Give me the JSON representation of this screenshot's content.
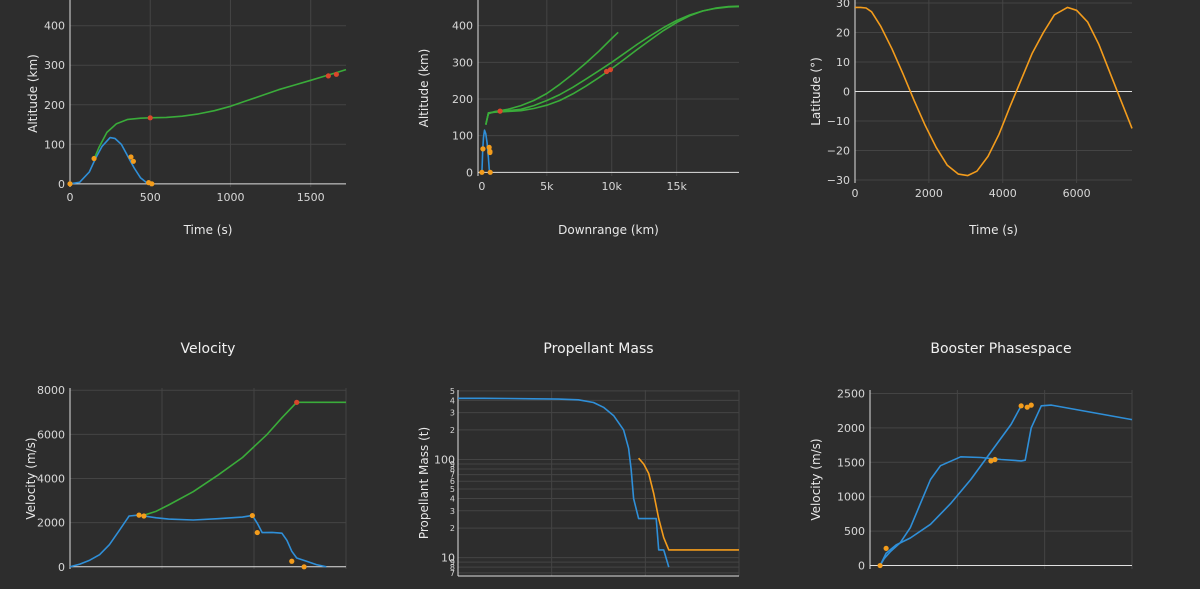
{
  "colors": {
    "background": "#2d2d2d",
    "grid": "#444444",
    "zeroline": "#e0e0e0",
    "blue": "#2f8fd8",
    "green": "#3aac3a",
    "orange": "#f39c1c",
    "redmarker": "#d9472b"
  },
  "chart_data": [
    {
      "id": "altitude-time",
      "type": "line",
      "title": "",
      "xlabel": "Time (s)",
      "ylabel": "Altitude (km)",
      "xlim": [
        0,
        1720
      ],
      "ylim": [
        -8,
        465
      ],
      "xticks": [
        0,
        500,
        1000,
        1500
      ],
      "xtick_labels": [
        "0",
        "500",
        "1000",
        "1500"
      ],
      "yticks": [
        0,
        100,
        200,
        300,
        400
      ],
      "ytick_labels": [
        "0",
        "100",
        "200",
        "300",
        "400"
      ],
      "series": [
        {
          "color": "blue",
          "x": [
            0,
            60,
            120,
            160,
            200,
            250,
            280,
            320,
            360,
            400,
            440,
            480,
            520
          ],
          "y": [
            0,
            4,
            30,
            65,
            95,
            117,
            115,
            100,
            70,
            40,
            15,
            2,
            0
          ]
        },
        {
          "color": "green",
          "x": [
            150,
            180,
            230,
            290,
            360,
            440,
            500,
            600,
            700,
            800,
            900,
            1000,
            1100,
            1200,
            1300,
            1400,
            1500,
            1600,
            1650,
            1720
          ],
          "y": [
            63,
            92,
            130,
            152,
            163,
            166,
            167,
            168,
            171,
            177,
            185,
            196,
            210,
            224,
            238,
            250,
            262,
            274,
            280,
            289
          ]
        }
      ],
      "markers": [
        {
          "color": "orange",
          "x": [
            0,
            150,
            380,
            395,
            490,
            510
          ],
          "y": [
            0,
            64,
            68,
            57,
            3,
            0
          ]
        },
        {
          "color": "redmarker",
          "x": [
            500,
            1610,
            1660
          ],
          "y": [
            167,
            273,
            277
          ]
        }
      ]
    },
    {
      "id": "altitude-downrange",
      "type": "line",
      "title": "",
      "xlabel": "Downrange (km)",
      "ylabel": "Altitude (km)",
      "xlim": [
        -300,
        19800
      ],
      "ylim": [
        -10,
        470
      ],
      "xticks": [
        0,
        5000,
        10000,
        15000
      ],
      "xtick_labels": [
        "0",
        "5k",
        "10k",
        "15k"
      ],
      "yticks": [
        0,
        100,
        200,
        300,
        400
      ],
      "ytick_labels": [
        "0",
        "100",
        "200",
        "300",
        "400"
      ],
      "series": [
        {
          "color": "blue",
          "x": [
            0,
            20,
            60,
            120,
            200,
            300,
            400,
            500,
            560,
            600
          ],
          "y": [
            0,
            20,
            60,
            95,
            115,
            105,
            80,
            40,
            10,
            0
          ]
        },
        {
          "color": "green",
          "x": [
            300,
            500,
            1000,
            2000,
            3000,
            4000,
            5000,
            6000,
            7000,
            8000,
            9000,
            10000,
            10500
          ],
          "y": [
            130,
            160,
            166,
            172,
            182,
            196,
            215,
            240,
            268,
            298,
            330,
            365,
            382
          ]
        },
        {
          "color": "green",
          "x": [
            300,
            500,
            1000,
            2000,
            3000,
            4000,
            5000,
            6000,
            7000,
            8000,
            9000,
            10000,
            11000,
            12000,
            13000,
            14000,
            15000,
            16000,
            17000,
            18000,
            19000,
            19800
          ],
          "y": [
            130,
            162,
            165,
            168,
            172,
            182,
            196,
            212,
            232,
            254,
            277,
            300,
            325,
            350,
            373,
            395,
            414,
            429,
            440,
            447,
            451,
            452
          ]
        },
        {
          "color": "green",
          "x": [
            300,
            500,
            1000,
            2000,
            3000,
            4000,
            5000,
            6000,
            7000,
            8000,
            9000,
            10000,
            11000,
            12000,
            13000,
            14000,
            15000,
            16000,
            17000,
            18000,
            19000,
            19800
          ],
          "y": [
            130,
            162,
            164,
            166,
            168,
            174,
            183,
            196,
            214,
            235,
            258,
            283,
            309,
            336,
            362,
            387,
            409,
            427,
            440,
            448,
            452,
            453
          ]
        }
      ],
      "markers": [
        {
          "color": "orange",
          "x": [
            0,
            80,
            560,
            620,
            620,
            640
          ],
          "y": [
            0,
            64,
            68,
            57,
            54,
            0
          ]
        },
        {
          "color": "redmarker",
          "x": [
            1400,
            9600,
            9900
          ],
          "y": [
            167,
            275,
            280
          ]
        }
      ]
    },
    {
      "id": "latitude-time",
      "type": "line",
      "title": "",
      "xlabel": "Time (s)",
      "ylabel": "Latitude (°)",
      "xlim": [
        0,
        7500
      ],
      "ylim": [
        -31,
        31
      ],
      "xticks": [
        0,
        2000,
        4000,
        6000
      ],
      "xtick_labels": [
        "0",
        "2000",
        "4000",
        "6000"
      ],
      "yticks": [
        -30,
        -20,
        -10,
        0,
        10,
        20,
        30
      ],
      "ytick_labels": [
        "−30",
        "−20",
        "−10",
        "0",
        "10",
        "20",
        "30"
      ],
      "series": [
        {
          "color": "orange",
          "x": [
            0,
            150,
            300,
            450,
            700,
            1000,
            1300,
            1600,
            1900,
            2200,
            2500,
            2800,
            3050,
            3300,
            3600,
            3900,
            4200,
            4500,
            4800,
            5100,
            5400,
            5750,
            6000,
            6300,
            6600,
            6900,
            7200,
            7500
          ],
          "y": [
            28.5,
            28.5,
            28.3,
            27,
            22,
            14.5,
            6,
            -3,
            -11.5,
            -19,
            -25,
            -28,
            -28.5,
            -27,
            -22,
            -14.5,
            -5,
            4,
            13,
            20,
            26,
            28.5,
            27.5,
            23.5,
            16,
            6.5,
            -3,
            -12.5
          ]
        }
      ]
    },
    {
      "id": "velocity",
      "type": "line",
      "title": "Velocity",
      "xlabel": "",
      "ylabel": "Velocity (m/s)",
      "xlim": [
        0,
        560
      ],
      "ylim": [
        -100,
        8100
      ],
      "xticks": [],
      "xtick_labels": [],
      "yticks": [
        0,
        2000,
        4000,
        6000,
        8000
      ],
      "ytick_labels": [
        "0",
        "2000",
        "4000",
        "6000",
        "8000"
      ],
      "series": [
        {
          "color": "blue",
          "x": [
            0,
            20,
            40,
            60,
            80,
            100,
            120,
            140,
            145,
            150,
            175,
            200,
            250,
            300,
            350,
            370,
            380,
            390,
            410,
            430,
            440,
            450,
            460,
            480,
            500,
            520
          ],
          "y": [
            0,
            120,
            300,
            550,
            1000,
            1650,
            2300,
            2340,
            2320,
            2300,
            2220,
            2160,
            2120,
            2180,
            2250,
            2330,
            1970,
            1550,
            1560,
            1520,
            1200,
            700,
            400,
            250,
            100,
            0
          ]
        },
        {
          "color": "green",
          "x": [
            145,
            175,
            200,
            250,
            300,
            350,
            400,
            430,
            460,
            490,
            530,
            560
          ],
          "y": [
            2300,
            2520,
            2800,
            3400,
            4150,
            4950,
            6000,
            6750,
            7450,
            7450,
            7450,
            7450
          ]
        }
      ],
      "markers": [
        {
          "color": "orange",
          "x": [
            140,
            150,
            370,
            380,
            450,
            475
          ],
          "y": [
            2340,
            2300,
            2320,
            1550,
            250,
            0
          ]
        },
        {
          "color": "redmarker",
          "x": [
            460
          ],
          "y": [
            7450
          ]
        }
      ]
    },
    {
      "id": "propellant-mass",
      "type": "line",
      "title": "Propellant Mass",
      "xlabel": "",
      "ylabel": "Propellant Mass (t)",
      "xlim": [
        0,
        560
      ],
      "ylim_log": [
        6.5,
        510
      ],
      "yscale": "log",
      "yticks": [
        10,
        100
      ],
      "ytick_labels": [
        "10",
        "100"
      ],
      "minor_ticks": [
        2,
        3,
        4,
        5,
        6,
        7,
        8,
        9,
        20,
        30,
        40,
        50,
        60,
        70,
        80,
        90,
        200,
        300,
        400,
        500
      ],
      "minor_labels": [
        "2",
        "3",
        "4",
        "5",
        "6",
        "7",
        "8",
        "9",
        "2",
        "3",
        "4",
        "5",
        "6",
        "7",
        "8",
        "9",
        "2",
        "3",
        "4",
        "5"
      ],
      "series": [
        {
          "color": "blue",
          "x": [
            0,
            50,
            100,
            150,
            200,
            240,
            270,
            290,
            310,
            330,
            340,
            345,
            350,
            360,
            370,
            380,
            390,
            395,
            400,
            405,
            410,
            420
          ],
          "y": [
            420,
            420,
            418,
            415,
            412,
            405,
            380,
            340,
            280,
            200,
            130,
            80,
            40,
            25,
            25,
            25,
            25,
            25,
            12,
            12,
            12,
            8
          ]
        },
        {
          "color": "orange",
          "x": [
            360,
            370,
            380,
            390,
            400,
            410,
            420,
            430,
            460,
            500,
            560
          ],
          "y": [
            103,
            90,
            72,
            45,
            25,
            16,
            12,
            12,
            12,
            12,
            12
          ]
        }
      ]
    },
    {
      "id": "booster-phasespace",
      "type": "line",
      "title": "Booster Phasespace",
      "xlabel": "",
      "ylabel": "Velocity (m/s)",
      "xlim": [
        -5,
        125
      ],
      "ylim": [
        -50,
        2550
      ],
      "xticks": [],
      "xtick_labels": [],
      "yticks": [
        0,
        500,
        1000,
        1500,
        2000,
        2500
      ],
      "ytick_labels": [
        "0",
        "500",
        "1000",
        "1500",
        "2000",
        "2500"
      ],
      "series": [
        {
          "color": "blue",
          "x": [
            0,
            2,
            5,
            10,
            15,
            20,
            25,
            30,
            40,
            50,
            60,
            70,
            72,
            75,
            80,
            85,
            125
          ],
          "y": [
            0,
            100,
            200,
            330,
            550,
            900,
            1250,
            1450,
            1580,
            1570,
            1540,
            1520,
            1530,
            2000,
            2320,
            2330,
            2120
          ]
        },
        {
          "color": "blue",
          "x": [
            0,
            3,
            8,
            15,
            25,
            35,
            45,
            55,
            65,
            70
          ],
          "y": [
            0,
            180,
            300,
            400,
            600,
            900,
            1250,
            1650,
            2050,
            2320
          ]
        }
      ],
      "markers": [
        {
          "color": "orange",
          "x": [
            0,
            3,
            55,
            57,
            70,
            73,
            75
          ],
          "y": [
            0,
            250,
            1520,
            1540,
            2320,
            2300,
            2330
          ]
        }
      ]
    }
  ]
}
